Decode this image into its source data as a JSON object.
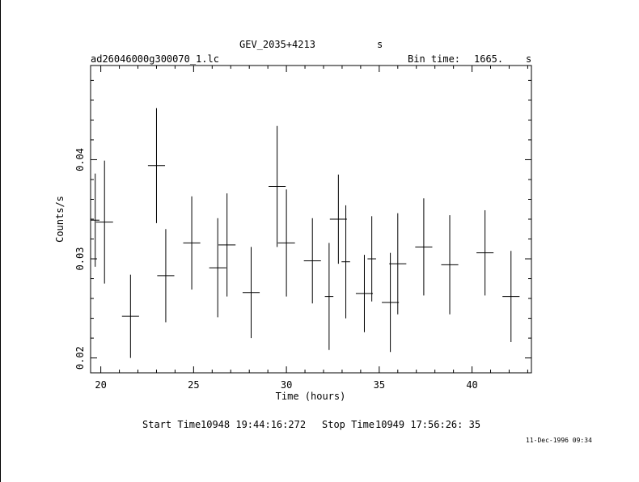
{
  "header": {
    "object": "GEV_2035+4213",
    "object_suffix": "s",
    "file": "ad26046000g300070_1.lc",
    "bin_label": "Bin time:",
    "bin_value": "1665.",
    "bin_unit": "s"
  },
  "footer": {
    "start_label": "Start Time",
    "start_value": "10948 19:44:16:272",
    "stop_label": "Stop Time",
    "stop_value": "10949 17:56:26: 35",
    "stamp": "11-Dec-1996 09:34"
  },
  "chart_data": {
    "type": "scatter",
    "xlabel": "Time (hours)",
    "ylabel": "Counts/s",
    "xlim": [
      19.45,
      43.2
    ],
    "ylim": [
      0.0185,
      0.0495
    ],
    "xticks": [
      20,
      25,
      30,
      35,
      40
    ],
    "yticks": [
      0.02,
      0.03,
      0.04
    ],
    "ytick_labels": [
      "0.02",
      "0.03",
      "0.04"
    ],
    "x_minor_step": 1,
    "y_minor_step": 0.002,
    "grid": false,
    "points": [
      {
        "x": 19.7,
        "xerr": 0.23,
        "y": 0.0339,
        "yerr": 0.0047
      },
      {
        "x": 20.2,
        "xerr": 0.46,
        "y": 0.0337,
        "yerr": 0.0062
      },
      {
        "x": 21.6,
        "xerr": 0.46,
        "y": 0.0242,
        "yerr": 0.0042
      },
      {
        "x": 23.0,
        "xerr": 0.46,
        "y": 0.0394,
        "yerr": 0.0058
      },
      {
        "x": 23.5,
        "xerr": 0.46,
        "y": 0.0283,
        "yerr": 0.0047
      },
      {
        "x": 24.9,
        "xerr": 0.46,
        "y": 0.0316,
        "yerr": 0.0047
      },
      {
        "x": 26.3,
        "xerr": 0.46,
        "y": 0.0291,
        "yerr": 0.005
      },
      {
        "x": 26.8,
        "xerr": 0.46,
        "y": 0.0314,
        "yerr": 0.0052
      },
      {
        "x": 28.1,
        "xerr": 0.46,
        "y": 0.0266,
        "yerr": 0.0046
      },
      {
        "x": 29.5,
        "xerr": 0.46,
        "y": 0.0373,
        "yerr": 0.0061
      },
      {
        "x": 30.0,
        "xerr": 0.46,
        "y": 0.0316,
        "yerr": 0.0054
      },
      {
        "x": 31.4,
        "xerr": 0.46,
        "y": 0.0298,
        "yerr": 0.0043
      },
      {
        "x": 32.3,
        "xerr": 0.23,
        "y": 0.0262,
        "yerr": 0.0054
      },
      {
        "x": 32.8,
        "xerr": 0.46,
        "y": 0.034,
        "yerr": 0.0045
      },
      {
        "x": 33.2,
        "xerr": 0.23,
        "y": 0.0297,
        "yerr": 0.0057
      },
      {
        "x": 34.2,
        "xerr": 0.46,
        "y": 0.0265,
        "yerr": 0.0039
      },
      {
        "x": 34.6,
        "xerr": 0.23,
        "y": 0.03,
        "yerr": 0.0043
      },
      {
        "x": 35.6,
        "xerr": 0.46,
        "y": 0.0256,
        "yerr": 0.005
      },
      {
        "x": 36.0,
        "xerr": 0.46,
        "y": 0.0295,
        "yerr": 0.0051
      },
      {
        "x": 37.4,
        "xerr": 0.46,
        "y": 0.0312,
        "yerr": 0.0049
      },
      {
        "x": 38.8,
        "xerr": 0.46,
        "y": 0.0294,
        "yerr": 0.005
      },
      {
        "x": 40.7,
        "xerr": 0.46,
        "y": 0.0306,
        "yerr": 0.0043
      },
      {
        "x": 42.1,
        "xerr": 0.46,
        "y": 0.0262,
        "yerr": 0.0046
      }
    ]
  }
}
